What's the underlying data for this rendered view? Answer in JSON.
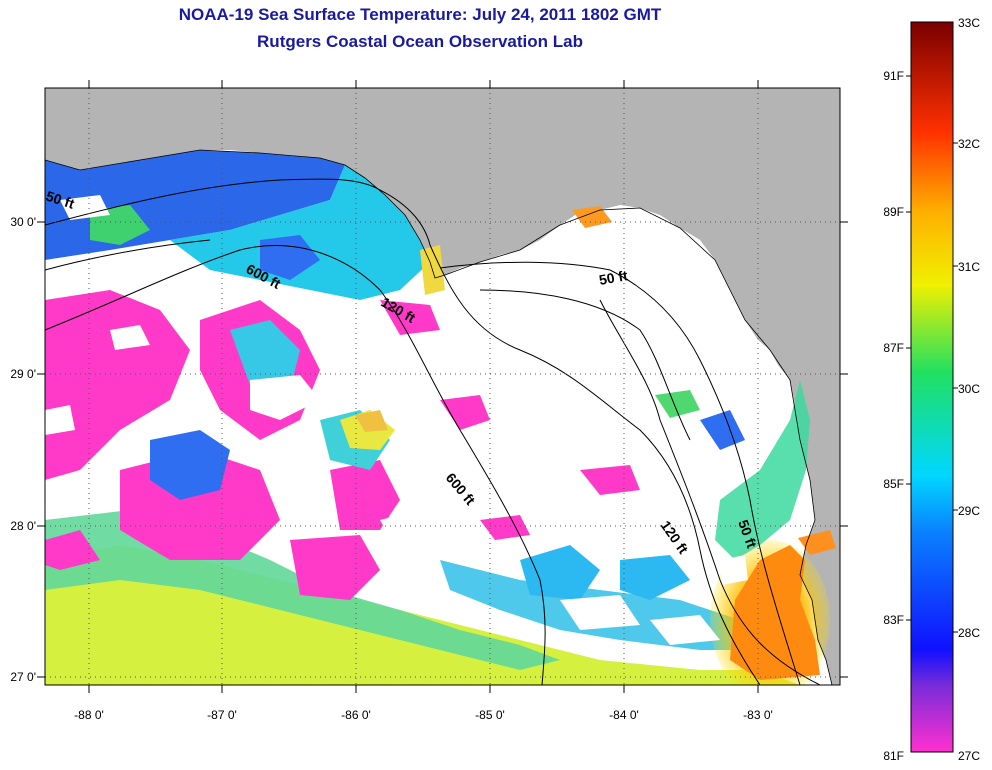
{
  "title": {
    "line1": "NOAA-19 Sea Surface Temperature:  July 24, 2011 1802 GMT",
    "line2": "Rutgers Coastal Ocean Observation Lab"
  },
  "map": {
    "lat_ticks": [
      "30 0'",
      "29 0'",
      "28 0'",
      "27 0'"
    ],
    "lon_ticks": [
      "-88 0'",
      "-87 0'",
      "-86 0'",
      "-85 0'",
      "-84 0'",
      "-83 0'"
    ],
    "isobaths": [
      "50 ft",
      "600 ft",
      "120 ft",
      "50 ft",
      "600 ft",
      "120 ft",
      "50 ft"
    ],
    "colors": {
      "land": "#b4b4b4",
      "cloud": "#ffffff",
      "grid": "#555555"
    }
  },
  "colorbar": {
    "celsius": [
      "33C",
      "32C",
      "31C",
      "30C",
      "29C",
      "28C",
      "27C"
    ],
    "fahrenheit": [
      "91F",
      "89F",
      "87F",
      "85F",
      "83F",
      "81F"
    ],
    "range_c": [
      27,
      33
    ]
  }
}
